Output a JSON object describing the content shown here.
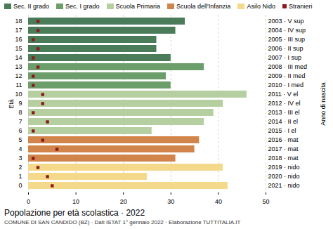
{
  "chart_data": {
    "type": "bar",
    "orientation": "horizontal",
    "title": "Popolazione per età scolastica · 2022",
    "subtitle": "COMUNE DI SAN CANDIDO (BZ) · Dati ISTAT 1° gennaio 2022 · Elaborazione TUTTITALIA.IT",
    "ylabel": "Età",
    "y2label": "Anno di nascita",
    "categories": [
      "0",
      "1",
      "2",
      "3",
      "4",
      "5",
      "6",
      "7",
      "8",
      "9",
      "10",
      "11",
      "12",
      "13",
      "14",
      "15",
      "16",
      "17",
      "18"
    ],
    "y2_categories": [
      "2021 · nido",
      "2020 · nido",
      "2019 · nido",
      "2018 · mat",
      "2017 · mat",
      "2016 · mat",
      "2015 · I el",
      "2014 · II el",
      "2013 · III el",
      "2012 · IV el",
      "2011 · V el",
      "2010 · I med",
      "2009 · II med",
      "2008 · III med",
      "2007 · I sup",
      "2006 · II sup",
      "2005 · III sup",
      "2004 · IV sup",
      "2003 · V sup"
    ],
    "series": [
      {
        "name": "Sec. II grado",
        "color": "#4a7c59",
        "values": [
          null,
          null,
          null,
          null,
          null,
          null,
          null,
          null,
          null,
          null,
          null,
          null,
          null,
          null,
          30,
          27,
          27,
          31,
          33
        ]
      },
      {
        "name": "Sec. I grado",
        "color": "#6b9e6b",
        "values": [
          null,
          null,
          null,
          null,
          null,
          null,
          null,
          null,
          null,
          null,
          null,
          30,
          29,
          37,
          null,
          null,
          null,
          null,
          null
        ]
      },
      {
        "name": "Scuola Primaria",
        "color": "#b5cfa0",
        "values": [
          null,
          null,
          null,
          null,
          null,
          null,
          26,
          37,
          39,
          41,
          46,
          null,
          null,
          null,
          null,
          null,
          null,
          null,
          null
        ]
      },
      {
        "name": "Scuola dell'Infanzia",
        "color": "#d2854a",
        "values": [
          null,
          null,
          null,
          31,
          35,
          36,
          null,
          null,
          null,
          null,
          null,
          null,
          null,
          null,
          null,
          null,
          null,
          null,
          null
        ]
      },
      {
        "name": "Asilo Nido",
        "color": "#f5d98b",
        "values": [
          42,
          25,
          41,
          null,
          null,
          null,
          null,
          null,
          null,
          null,
          null,
          null,
          null,
          null,
          null,
          null,
          null,
          null,
          null
        ]
      },
      {
        "name": "Stranieri",
        "type": "scatter",
        "marker": "square",
        "color": "#8b1a1a",
        "values": [
          5,
          4,
          2,
          1,
          6,
          3,
          1,
          4,
          1,
          3,
          3,
          1,
          1,
          2,
          1,
          2,
          1,
          2,
          2
        ]
      }
    ],
    "xlim": [
      0,
      50
    ],
    "xticks": [
      0,
      10,
      20,
      30,
      40,
      50
    ],
    "grid": true,
    "legend": "top"
  }
}
